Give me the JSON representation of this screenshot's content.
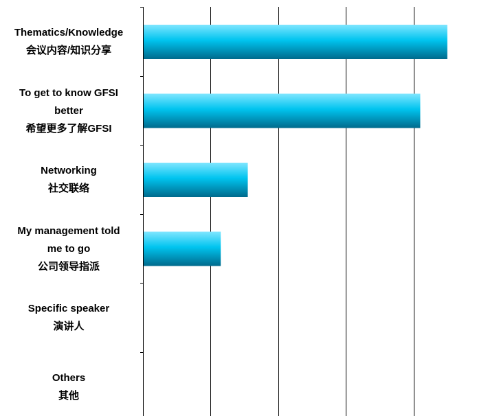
{
  "chart_data": {
    "type": "bar",
    "orientation": "horizontal",
    "categories": [
      "Thematics/Knowledge\n会议内容/知识分享",
      "To get to know GFSI\nbetter\n希望更多了解GFSI",
      "Networking\n社交联络",
      "My management told\nme to go\n公司领导指派",
      "Specific speaker\n演讲人",
      "Others\n其他"
    ],
    "values": [
      45,
      41,
      15.5,
      11.5,
      0,
      0
    ],
    "xlim": [
      0,
      50
    ],
    "grid": true,
    "gridlines_x": [
      10,
      20,
      30,
      40
    ],
    "title": "",
    "xlabel": "",
    "ylabel": "",
    "colors": {
      "bar_top": "#7fe6ff",
      "bar_mid": "#00c4ef",
      "bar_bottom": "#006a8c",
      "grid": "#000000",
      "axis": "#000000"
    }
  }
}
